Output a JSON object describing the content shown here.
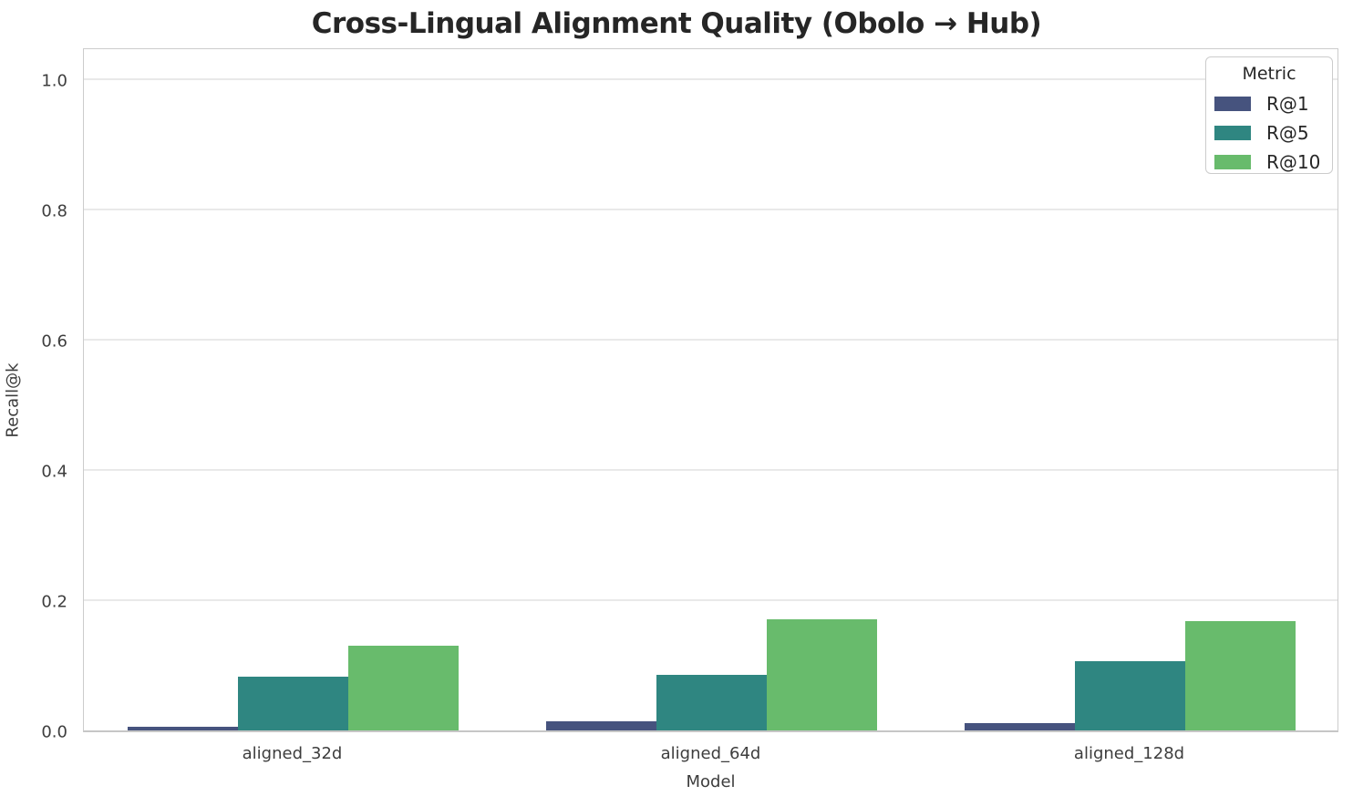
{
  "title": "Cross-Lingual Alignment Quality (Obolo → Hub)",
  "chart_data": {
    "type": "bar",
    "title": "Cross-Lingual Alignment Quality (Obolo → Hub)",
    "xlabel": "Model",
    "ylabel": "Recall@k",
    "categories": [
      "aligned_32d",
      "aligned_64d",
      "aligned_128d"
    ],
    "series": [
      {
        "name": "R@1",
        "color": "#46537e",
        "values": [
          0.006,
          0.014,
          0.011
        ]
      },
      {
        "name": "R@5",
        "color": "#2f8681",
        "values": [
          0.083,
          0.086,
          0.106
        ]
      },
      {
        "name": "R@10",
        "color": "#68bb6c",
        "values": [
          0.13,
          0.171,
          0.168
        ]
      }
    ],
    "ylim": [
      0,
      1.05
    ],
    "yticks": [
      0.0,
      0.2,
      0.4,
      0.6,
      0.8,
      1.0
    ],
    "ytick_labels": [
      "0.0",
      "0.2",
      "0.4",
      "0.6",
      "0.8",
      "1.0"
    ],
    "grid": true,
    "legend_title": "Metric",
    "legend_position": "upper right"
  },
  "colors": {
    "background": "#ffffff",
    "grid": "#e9e9e9",
    "spine": "#cccccc",
    "title_text": "#262626",
    "tick_text": "#3d3d3d",
    "legend_border": "#cccccc"
  }
}
